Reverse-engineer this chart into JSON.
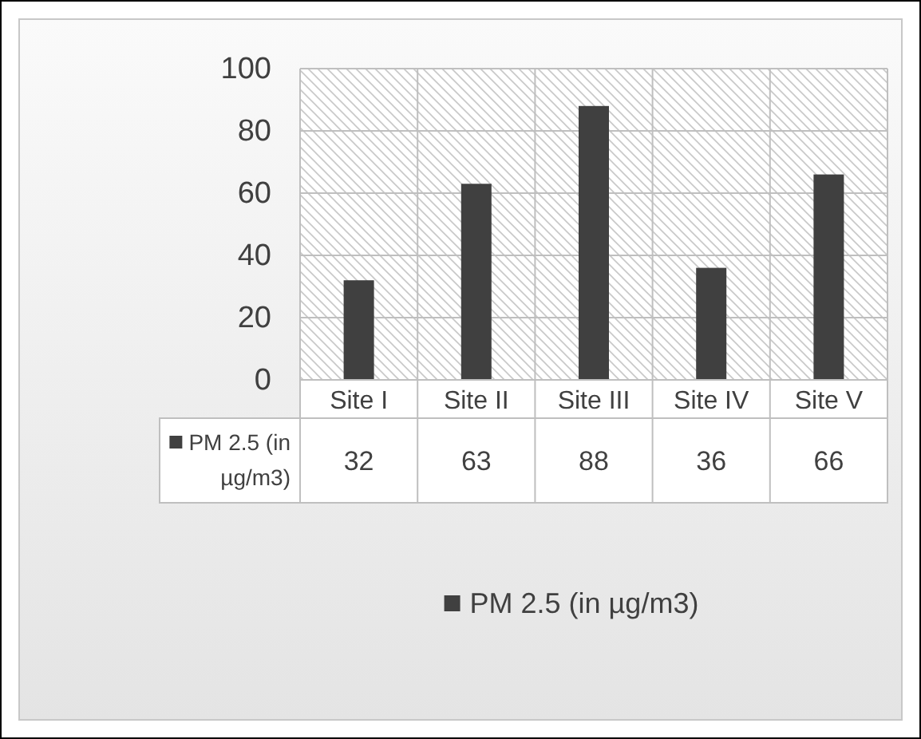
{
  "chart_data": {
    "type": "bar",
    "categories": [
      "Site I",
      "Site II",
      "Site III",
      "Site IV",
      "Site V"
    ],
    "series": [
      {
        "name": "PM 2.5 (in µg/m3)",
        "color": "#404040",
        "values": [
          32,
          63,
          88,
          36,
          66
        ]
      }
    ],
    "ylim": [
      0,
      100
    ],
    "yticks": [
      0,
      20,
      40,
      60,
      80,
      100
    ],
    "grid": true,
    "legend": "bottom",
    "data_labels": true
  }
}
